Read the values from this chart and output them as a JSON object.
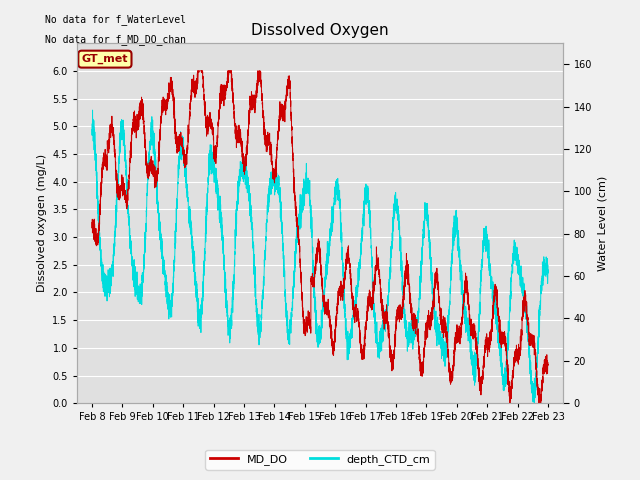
{
  "title": "Dissolved Oxygen",
  "ylabel_left": "Dissolved oxygen (mg/L)",
  "ylabel_right": "Water Level (cm)",
  "no_data_line1": "No data for f_WaterLevel",
  "no_data_line2": "No data for f_MD_DO_chan",
  "gt_met_label": "GT_met",
  "xlim_days": [
    7.5,
    23.5
  ],
  "ylim_left": [
    0.0,
    6.5
  ],
  "ylim_right": [
    0,
    170
  ],
  "yticks_left": [
    0.0,
    0.5,
    1.0,
    1.5,
    2.0,
    2.5,
    3.0,
    3.5,
    4.0,
    4.5,
    5.0,
    5.5,
    6.0
  ],
  "yticks_right": [
    0,
    20,
    40,
    60,
    80,
    100,
    120,
    140,
    160
  ],
  "xtick_labels": [
    "Feb 8",
    "Feb 9",
    "Feb 10",
    "Feb 11",
    "Feb 12",
    "Feb 13",
    "Feb 14",
    "Feb 15",
    "Feb 16",
    "Feb 17",
    "Feb 18",
    "Feb 19",
    "Feb 20",
    "Feb 21",
    "Feb 22",
    "Feb 23"
  ],
  "xtick_positions": [
    8,
    9,
    10,
    11,
    12,
    13,
    14,
    15,
    16,
    17,
    18,
    19,
    20,
    21,
    22,
    23
  ],
  "color_MD_DO": "#cc0000",
  "color_depth": "#00dddd",
  "legend_labels": [
    "MD_DO",
    "depth_CTD_cm"
  ],
  "fig_bg_color": "#f0f0f0",
  "plot_bg_color": "#e0e0e0",
  "title_fontsize": 11,
  "axis_label_fontsize": 8,
  "tick_fontsize": 7,
  "legend_fontsize": 8,
  "nodata_fontsize": 7
}
